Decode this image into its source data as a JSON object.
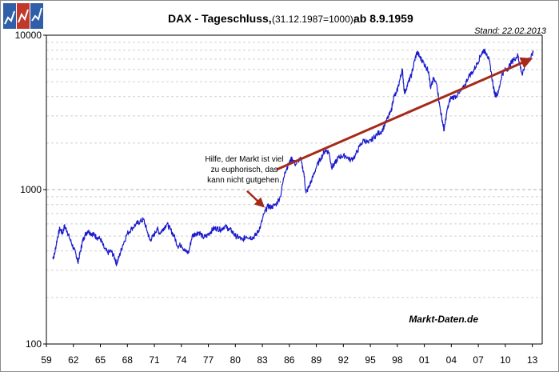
{
  "colors": {
    "series": "#1a1acc",
    "arrow": "#a52a1a",
    "grid_major": "#b0b0b0",
    "grid_minor": "#cfcfcf",
    "frame": "#8c8c8c",
    "logo_blue": "#2f5fa8",
    "logo_red": "#c0392b"
  },
  "logo": {
    "icon": "market-logo-icon"
  },
  "chart_data": {
    "type": "line",
    "title_main": "DAX - Tageschluss,",
    "title_note": "(31.12.1987=1000);",
    "title_tail": "ab 8.9.1959",
    "stand": "Stand: 22.02.2013",
    "watermark": "Markt-Daten.de",
    "yscale": "log",
    "ylim": [
      100,
      10000
    ],
    "xlim": [
      1959.0,
      2014.1
    ],
    "grid": true,
    "y_tick_labels": [
      {
        "value": 10000,
        "label": "10000"
      },
      {
        "value": 1000,
        "label": "1000"
      },
      {
        "value": 100,
        "label": "100"
      }
    ],
    "x_tick_labels": [
      {
        "value": 1959,
        "label": "59"
      },
      {
        "value": 1962,
        "label": "62"
      },
      {
        "value": 1965,
        "label": "65"
      },
      {
        "value": 1968,
        "label": "68"
      },
      {
        "value": 1971,
        "label": "71"
      },
      {
        "value": 1974,
        "label": "74"
      },
      {
        "value": 1977,
        "label": "77"
      },
      {
        "value": 1980,
        "label": "80"
      },
      {
        "value": 1983,
        "label": "83"
      },
      {
        "value": 1986,
        "label": "86"
      },
      {
        "value": 1989,
        "label": "89"
      },
      {
        "value": 1992,
        "label": "92"
      },
      {
        "value": 1995,
        "label": "95"
      },
      {
        "value": 1998,
        "label": "98"
      },
      {
        "value": 2001,
        "label": "01"
      },
      {
        "value": 2004,
        "label": "04"
      },
      {
        "value": 2007,
        "label": "07"
      },
      {
        "value": 2010,
        "label": "10"
      },
      {
        "value": 2013,
        "label": "13"
      }
    ],
    "series": [
      {
        "x": [
          1959.7,
          1959.9,
          1960.2,
          1960.5,
          1960.8,
          1961.0,
          1961.3,
          1961.6,
          1962.0,
          1962.3,
          1962.5,
          1962.8,
          1963.0,
          1963.3,
          1963.6,
          1964.0,
          1964.3,
          1964.6,
          1965.0,
          1965.4,
          1965.8,
          1966.2,
          1966.6,
          1966.8,
          1967.1,
          1967.5,
          1968.0,
          1968.5,
          1969.0,
          1969.4,
          1969.8,
          1970.2,
          1970.5,
          1970.9,
          1971.3,
          1971.6,
          1972.0,
          1972.4,
          1972.8,
          1973.2,
          1973.6,
          1974.0,
          1974.4,
          1974.8,
          1975.2,
          1975.6,
          1976.0,
          1976.4,
          1976.8,
          1977.2,
          1977.6,
          1978.0,
          1978.4,
          1978.8,
          1979.2,
          1979.6,
          1980.0,
          1980.4,
          1980.8,
          1981.2,
          1981.6,
          1982.0,
          1982.4,
          1982.8,
          1983.2,
          1983.6,
          1984.0,
          1984.5,
          1985.0,
          1985.5,
          1985.9,
          1986.3,
          1986.7,
          1987.2,
          1987.6,
          1987.85,
          1988.2,
          1988.6,
          1989.0,
          1989.5,
          1990.0,
          1990.4,
          1990.7,
          1991.0,
          1991.4,
          1991.8,
          1992.3,
          1992.8,
          1993.3,
          1993.8,
          1994.3,
          1994.8,
          1995.3,
          1995.8,
          1996.3,
          1996.8,
          1997.3,
          1997.6,
          1997.9,
          1998.3,
          1998.55,
          1998.8,
          1999.2,
          1999.6,
          1999.9,
          2000.2,
          2000.5,
          2000.8,
          2001.2,
          2001.5,
          2001.7,
          2002.0,
          2002.4,
          2002.7,
          2003.0,
          2003.2,
          2003.5,
          2003.9,
          2004.4,
          2004.9,
          2005.4,
          2005.9,
          2006.4,
          2006.9,
          2007.3,
          2007.6,
          2007.95,
          2008.3,
          2008.7,
          2008.9,
          2009.2,
          2009.6,
          2009.9,
          2010.3,
          2010.7,
          2011.0,
          2011.4,
          2011.6,
          2011.9,
          2012.3,
          2012.7,
          2013.1
        ],
        "values": [
          360,
          380,
          480,
          560,
          520,
          580,
          540,
          480,
          420,
          380,
          340,
          400,
          460,
          510,
          540,
          520,
          510,
          490,
          480,
          420,
          390,
          400,
          360,
          330,
          370,
          440,
          520,
          560,
          600,
          620,
          640,
          540,
          470,
          500,
          560,
          520,
          560,
          600,
          550,
          500,
          430,
          440,
          400,
          390,
          500,
          520,
          530,
          490,
          500,
          530,
          560,
          560,
          550,
          580,
          560,
          540,
          500,
          490,
          470,
          500,
          490,
          490,
          520,
          580,
          700,
          780,
          770,
          800,
          900,
          1300,
          1450,
          1600,
          1450,
          1600,
          1300,
          950,
          1050,
          1200,
          1400,
          1600,
          1800,
          1750,
          1400,
          1450,
          1600,
          1650,
          1650,
          1550,
          1650,
          1900,
          2100,
          2000,
          2150,
          2300,
          2400,
          2800,
          3200,
          4000,
          4200,
          5200,
          6000,
          4200,
          4900,
          5600,
          6800,
          7800,
          7200,
          6800,
          6200,
          5800,
          4500,
          5200,
          4800,
          3500,
          2800,
          2400,
          3200,
          3900,
          4000,
          4200,
          4600,
          5400,
          5800,
          6600,
          7500,
          8000,
          7600,
          6500,
          4500,
          4100,
          4200,
          5500,
          5900,
          6100,
          6700,
          7000,
          7400,
          6500,
          5500,
          6800,
          7000,
          7700
        ]
      }
    ],
    "trend_arrow": {
      "x0": 1984.6,
      "y0": 1350,
      "x1": 2012.8,
      "y1": 7000
    },
    "annotation": {
      "lines": [
        "Hilfe, der Markt ist viel",
        "zu euphorisch, das",
        "kann nicht gutgehen."
      ],
      "x": 1981.0,
      "y": 1520,
      "arrow_x0": 1981.3,
      "arrow_y0": 980,
      "arrow_x1": 1983.1,
      "arrow_y1": 780
    }
  }
}
